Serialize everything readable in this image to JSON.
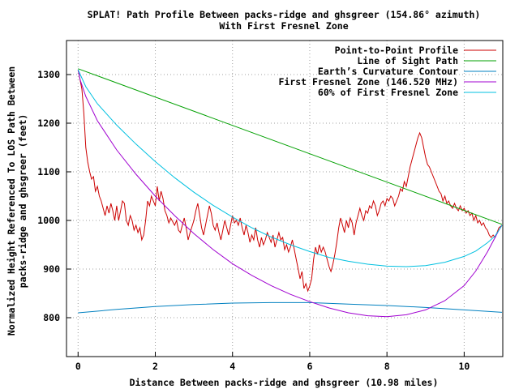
{
  "chart_data": {
    "type": "line",
    "title": "SPLAT! Path Profile Between packs-ridge and ghsgreer (154.86° azimuth)",
    "subtitle": "With First Fresnel Zone",
    "xlabel": "Distance Between packs-ridge and ghsgreer (10.98 miles)",
    "ylabel_lines": [
      "Normalized Height Referenced To LOS Path Between",
      "packs-ridge and ghsgreer (feet)"
    ],
    "xlim": [
      -0.3,
      11
    ],
    "ylim": [
      720,
      1370
    ],
    "xticks": [
      0,
      2,
      4,
      6,
      8,
      10
    ],
    "yticks": [
      800,
      900,
      1000,
      1100,
      1200,
      1300
    ],
    "grid": true,
    "legend_position": "top-right",
    "series": [
      {
        "name": "Point-to-Point Profile",
        "color": "#cc0000",
        "points": [
          [
            0,
            1310
          ],
          [
            0.1,
            1270
          ],
          [
            0.15,
            1220
          ],
          [
            0.2,
            1150
          ],
          [
            0.25,
            1120
          ],
          [
            0.3,
            1100
          ],
          [
            0.35,
            1085
          ],
          [
            0.4,
            1090
          ],
          [
            0.45,
            1060
          ],
          [
            0.5,
            1070
          ],
          [
            0.55,
            1050
          ],
          [
            0.6,
            1040
          ],
          [
            0.65,
            1025
          ],
          [
            0.7,
            1010
          ],
          [
            0.75,
            1030
          ],
          [
            0.8,
            1015
          ],
          [
            0.85,
            1035
          ],
          [
            0.9,
            1020
          ],
          [
            0.95,
            1000
          ],
          [
            1.0,
            1030
          ],
          [
            1.05,
            1000
          ],
          [
            1.1,
            1020
          ],
          [
            1.15,
            1040
          ],
          [
            1.2,
            1035
          ],
          [
            1.25,
            1000
          ],
          [
            1.3,
            990
          ],
          [
            1.35,
            1010
          ],
          [
            1.4,
            1000
          ],
          [
            1.45,
            980
          ],
          [
            1.5,
            990
          ],
          [
            1.55,
            975
          ],
          [
            1.6,
            985
          ],
          [
            1.65,
            960
          ],
          [
            1.7,
            970
          ],
          [
            1.75,
            1000
          ],
          [
            1.8,
            1040
          ],
          [
            1.85,
            1030
          ],
          [
            1.9,
            1050
          ],
          [
            2.0,
            1030
          ],
          [
            2.05,
            1070
          ],
          [
            2.1,
            1040
          ],
          [
            2.15,
            1060
          ],
          [
            2.2,
            1045
          ],
          [
            2.25,
            1020
          ],
          [
            2.3,
            1010
          ],
          [
            2.35,
            995
          ],
          [
            2.4,
            1005
          ],
          [
            2.5,
            990
          ],
          [
            2.55,
            1000
          ],
          [
            2.6,
            980
          ],
          [
            2.65,
            975
          ],
          [
            2.7,
            990
          ],
          [
            2.75,
            1005
          ],
          [
            2.8,
            985
          ],
          [
            2.85,
            960
          ],
          [
            2.9,
            975
          ],
          [
            3.0,
            1000
          ],
          [
            3.05,
            1020
          ],
          [
            3.1,
            1035
          ],
          [
            3.15,
            1010
          ],
          [
            3.2,
            985
          ],
          [
            3.25,
            970
          ],
          [
            3.3,
            990
          ],
          [
            3.35,
            1010
          ],
          [
            3.4,
            1030
          ],
          [
            3.45,
            1015
          ],
          [
            3.5,
            990
          ],
          [
            3.55,
            980
          ],
          [
            3.6,
            995
          ],
          [
            3.65,
            975
          ],
          [
            3.7,
            960
          ],
          [
            3.75,
            980
          ],
          [
            3.8,
            1000
          ],
          [
            3.85,
            985
          ],
          [
            3.9,
            970
          ],
          [
            3.95,
            990
          ],
          [
            4.0,
            1010
          ],
          [
            4.05,
            995
          ],
          [
            4.1,
            1000
          ],
          [
            4.15,
            990
          ],
          [
            4.2,
            1005
          ],
          [
            4.25,
            985
          ],
          [
            4.3,
            970
          ],
          [
            4.35,
            990
          ],
          [
            4.4,
            975
          ],
          [
            4.45,
            955
          ],
          [
            4.5,
            970
          ],
          [
            4.55,
            960
          ],
          [
            4.6,
            985
          ],
          [
            4.65,
            960
          ],
          [
            4.7,
            945
          ],
          [
            4.75,
            965
          ],
          [
            4.8,
            950
          ],
          [
            4.85,
            960
          ],
          [
            4.9,
            975
          ],
          [
            4.95,
            965
          ],
          [
            5.0,
            955
          ],
          [
            5.05,
            970
          ],
          [
            5.1,
            945
          ],
          [
            5.15,
            960
          ],
          [
            5.2,
            975
          ],
          [
            5.25,
            960
          ],
          [
            5.3,
            965
          ],
          [
            5.35,
            940
          ],
          [
            5.4,
            950
          ],
          [
            5.45,
            935
          ],
          [
            5.5,
            945
          ],
          [
            5.55,
            960
          ],
          [
            5.6,
            940
          ],
          [
            5.65,
            920
          ],
          [
            5.7,
            900
          ],
          [
            5.75,
            880
          ],
          [
            5.8,
            895
          ],
          [
            5.85,
            860
          ],
          [
            5.9,
            870
          ],
          [
            5.95,
            855
          ],
          [
            6.0,
            865
          ],
          [
            6.05,
            880
          ],
          [
            6.1,
            920
          ],
          [
            6.15,
            945
          ],
          [
            6.2,
            930
          ],
          [
            6.25,
            950
          ],
          [
            6.3,
            935
          ],
          [
            6.35,
            945
          ],
          [
            6.4,
            935
          ],
          [
            6.45,
            920
          ],
          [
            6.5,
            905
          ],
          [
            6.55,
            895
          ],
          [
            6.6,
            910
          ],
          [
            6.65,
            930
          ],
          [
            6.7,
            955
          ],
          [
            6.75,
            985
          ],
          [
            6.8,
            1005
          ],
          [
            6.85,
            990
          ],
          [
            6.9,
            975
          ],
          [
            6.95,
            1000
          ],
          [
            7.0,
            985
          ],
          [
            7.05,
            1005
          ],
          [
            7.1,
            995
          ],
          [
            7.15,
            970
          ],
          [
            7.2,
            995
          ],
          [
            7.25,
            1010
          ],
          [
            7.3,
            1025
          ],
          [
            7.35,
            1010
          ],
          [
            7.4,
            1000
          ],
          [
            7.45,
            1020
          ],
          [
            7.5,
            1015
          ],
          [
            7.55,
            1030
          ],
          [
            7.6,
            1025
          ],
          [
            7.65,
            1040
          ],
          [
            7.7,
            1030
          ],
          [
            7.75,
            1010
          ],
          [
            7.8,
            1020
          ],
          [
            7.85,
            1035
          ],
          [
            7.9,
            1040
          ],
          [
            7.95,
            1030
          ],
          [
            8.0,
            1045
          ],
          [
            8.05,
            1040
          ],
          [
            8.1,
            1050
          ],
          [
            8.15,
            1045
          ],
          [
            8.2,
            1030
          ],
          [
            8.25,
            1040
          ],
          [
            8.3,
            1050
          ],
          [
            8.35,
            1065
          ],
          [
            8.4,
            1060
          ],
          [
            8.45,
            1080
          ],
          [
            8.5,
            1070
          ],
          [
            8.55,
            1090
          ],
          [
            8.6,
            1110
          ],
          [
            8.65,
            1125
          ],
          [
            8.7,
            1140
          ],
          [
            8.75,
            1155
          ],
          [
            8.8,
            1170
          ],
          [
            8.85,
            1180
          ],
          [
            8.9,
            1170
          ],
          [
            8.95,
            1150
          ],
          [
            9.0,
            1130
          ],
          [
            9.05,
            1115
          ],
          [
            9.1,
            1110
          ],
          [
            9.15,
            1100
          ],
          [
            9.2,
            1090
          ],
          [
            9.25,
            1080
          ],
          [
            9.3,
            1070
          ],
          [
            9.35,
            1060
          ],
          [
            9.4,
            1055
          ],
          [
            9.45,
            1040
          ],
          [
            9.5,
            1050
          ],
          [
            9.55,
            1035
          ],
          [
            9.6,
            1040
          ],
          [
            9.65,
            1030
          ],
          [
            9.7,
            1025
          ],
          [
            9.75,
            1035
          ],
          [
            9.8,
            1025
          ],
          [
            9.85,
            1020
          ],
          [
            9.9,
            1030
          ],
          [
            9.95,
            1020
          ],
          [
            10.0,
            1025
          ],
          [
            10.05,
            1015
          ],
          [
            10.1,
            1020
          ],
          [
            10.15,
            1010
          ],
          [
            10.2,
            1015
          ],
          [
            10.25,
            1000
          ],
          [
            10.3,
            1010
          ],
          [
            10.35,
            995
          ],
          [
            10.4,
            1000
          ],
          [
            10.45,
            990
          ],
          [
            10.5,
            995
          ],
          [
            10.55,
            985
          ],
          [
            10.6,
            980
          ],
          [
            10.65,
            970
          ],
          [
            10.7,
            965
          ],
          [
            10.75,
            970
          ],
          [
            10.8,
            965
          ],
          [
            10.85,
            975
          ],
          [
            10.9,
            985
          ],
          [
            10.98,
            990
          ]
        ]
      },
      {
        "name": "Line of Sight Path",
        "color": "#00a000",
        "points": [
          [
            0,
            1312
          ],
          [
            10.98,
            992
          ]
        ]
      },
      {
        "name": "Earth’s Curvature Contour",
        "color": "#0080c0",
        "points": [
          [
            0,
            810
          ],
          [
            1,
            817
          ],
          [
            2,
            823
          ],
          [
            3,
            827
          ],
          [
            4,
            830
          ],
          [
            5,
            831
          ],
          [
            6,
            831
          ],
          [
            7,
            828
          ],
          [
            8,
            825
          ],
          [
            9,
            821
          ],
          [
            10,
            816
          ],
          [
            10.98,
            811
          ]
        ]
      },
      {
        "name": "First Fresnel Zone (146.520 MHz)",
        "color": "#a000d0",
        "points": [
          [
            0,
            1310
          ],
          [
            0.05,
            1290
          ],
          [
            0.2,
            1255
          ],
          [
            0.5,
            1205
          ],
          [
            1,
            1145
          ],
          [
            1.5,
            1095
          ],
          [
            2,
            1050
          ],
          [
            2.5,
            1010
          ],
          [
            3,
            973
          ],
          [
            3.5,
            940
          ],
          [
            4,
            911
          ],
          [
            4.5,
            887
          ],
          [
            5,
            866
          ],
          [
            5.5,
            848
          ],
          [
            6,
            833
          ],
          [
            6.5,
            820
          ],
          [
            7,
            810
          ],
          [
            7.5,
            804
          ],
          [
            8,
            802
          ],
          [
            8.5,
            806
          ],
          [
            9,
            816
          ],
          [
            9.5,
            835
          ],
          [
            10,
            866
          ],
          [
            10.3,
            896
          ],
          [
            10.6,
            935
          ],
          [
            10.8,
            965
          ],
          [
            10.9,
            980
          ],
          [
            10.98,
            990
          ]
        ]
      },
      {
        "name": "60% of First Fresnel Zone",
        "color": "#00c0e0",
        "points": [
          [
            0,
            1310
          ],
          [
            0.2,
            1275
          ],
          [
            0.5,
            1240
          ],
          [
            1,
            1196
          ],
          [
            1.5,
            1157
          ],
          [
            2,
            1121
          ],
          [
            2.5,
            1088
          ],
          [
            3,
            1058
          ],
          [
            3.5,
            1031
          ],
          [
            4,
            1007
          ],
          [
            4.5,
            985
          ],
          [
            5,
            966
          ],
          [
            5.5,
            950
          ],
          [
            6,
            936
          ],
          [
            6.5,
            924
          ],
          [
            7,
            916
          ],
          [
            7.5,
            910
          ],
          [
            8,
            906
          ],
          [
            8.5,
            905
          ],
          [
            9,
            907
          ],
          [
            9.5,
            914
          ],
          [
            10,
            926
          ],
          [
            10.3,
            937
          ],
          [
            10.6,
            954
          ],
          [
            10.8,
            968
          ],
          [
            10.98,
            990
          ]
        ]
      }
    ]
  }
}
